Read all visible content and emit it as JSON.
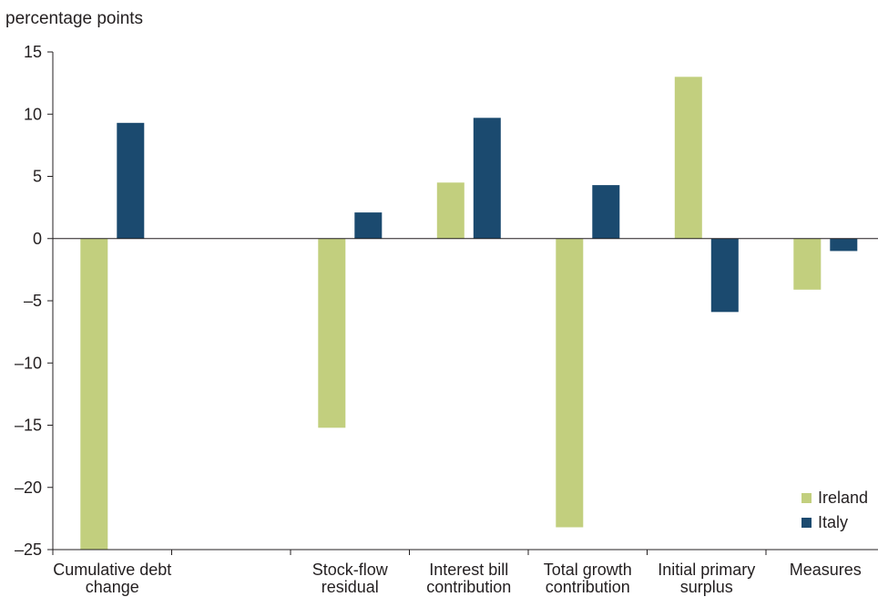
{
  "chart_data": {
    "type": "bar",
    "ylabel": "percentage points",
    "ylim": [
      -25,
      15
    ],
    "yticks": [
      15,
      10,
      5,
      0,
      -5,
      -10,
      -15,
      -20,
      -25
    ],
    "ytick_labels": [
      "15",
      "10",
      "5",
      "0",
      "–5",
      "–10",
      "–15",
      "–20",
      "–25"
    ],
    "categories": [
      [
        "Cumulative debt",
        "change"
      ],
      [
        "",
        ""
      ],
      [
        "Stock-flow",
        "residual"
      ],
      [
        "Interest bill",
        "contribution"
      ],
      [
        "Total growth",
        "contribution"
      ],
      [
        "Initial primary",
        "surplus"
      ],
      [
        "Measures",
        ""
      ]
    ],
    "series": [
      {
        "name": "Ireland",
        "color": "#c2cf7e",
        "values": [
          -25.0,
          null,
          -15.2,
          4.5,
          -23.2,
          13.0,
          -4.1
        ]
      },
      {
        "name": "Italy",
        "color": "#1b4a6f",
        "values": [
          9.3,
          null,
          2.1,
          9.7,
          4.3,
          -5.9,
          -1.0
        ]
      }
    ],
    "legend_position": "bottom-right",
    "grid": false
  }
}
